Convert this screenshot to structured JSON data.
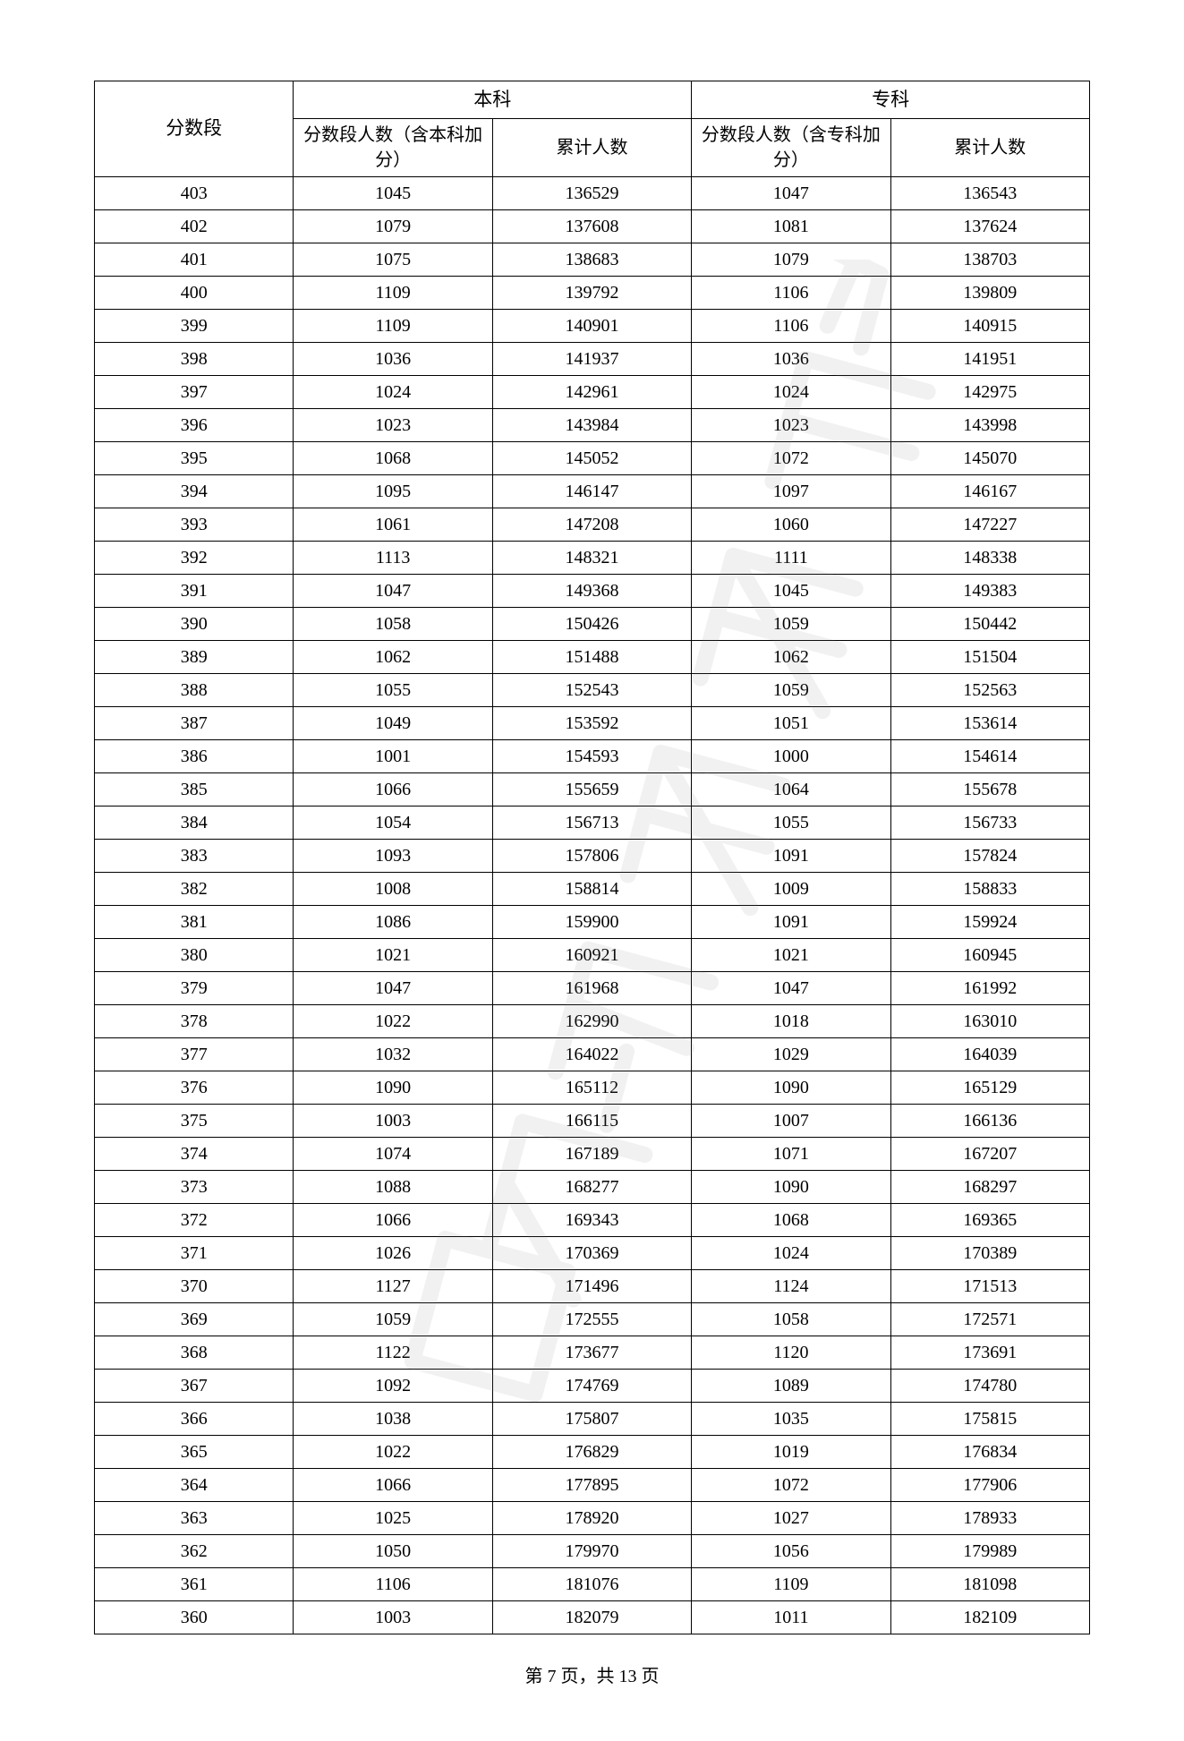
{
  "table": {
    "header": {
      "col1": "分数段",
      "group1": "本科",
      "group2": "专科",
      "sub1": "分数段人数（含本科加分）",
      "sub2": "累计人数",
      "sub3": "分数段人数（含专科加分）",
      "sub4": "累计人数"
    },
    "columns": [
      "score",
      "bk_count",
      "bk_cum",
      "zk_count",
      "zk_cum"
    ],
    "col_widths_pct": [
      20,
      20,
      20,
      20,
      20
    ],
    "border_color": "#000000",
    "font_size_header": 21,
    "font_size_body": 20,
    "text_color": "#000000",
    "rows": [
      [
        403,
        1045,
        136529,
        1047,
        136543
      ],
      [
        402,
        1079,
        137608,
        1081,
        137624
      ],
      [
        401,
        1075,
        138683,
        1079,
        138703
      ],
      [
        400,
        1109,
        139792,
        1106,
        139809
      ],
      [
        399,
        1109,
        140901,
        1106,
        140915
      ],
      [
        398,
        1036,
        141937,
        1036,
        141951
      ],
      [
        397,
        1024,
        142961,
        1024,
        142975
      ],
      [
        396,
        1023,
        143984,
        1023,
        143998
      ],
      [
        395,
        1068,
        145052,
        1072,
        145070
      ],
      [
        394,
        1095,
        146147,
        1097,
        146167
      ],
      [
        393,
        1061,
        147208,
        1060,
        147227
      ],
      [
        392,
        1113,
        148321,
        1111,
        148338
      ],
      [
        391,
        1047,
        149368,
        1045,
        149383
      ],
      [
        390,
        1058,
        150426,
        1059,
        150442
      ],
      [
        389,
        1062,
        151488,
        1062,
        151504
      ],
      [
        388,
        1055,
        152543,
        1059,
        152563
      ],
      [
        387,
        1049,
        153592,
        1051,
        153614
      ],
      [
        386,
        1001,
        154593,
        1000,
        154614
      ],
      [
        385,
        1066,
        155659,
        1064,
        155678
      ],
      [
        384,
        1054,
        156713,
        1055,
        156733
      ],
      [
        383,
        1093,
        157806,
        1091,
        157824
      ],
      [
        382,
        1008,
        158814,
        1009,
        158833
      ],
      [
        381,
        1086,
        159900,
        1091,
        159924
      ],
      [
        380,
        1021,
        160921,
        1021,
        160945
      ],
      [
        379,
        1047,
        161968,
        1047,
        161992
      ],
      [
        378,
        1022,
        162990,
        1018,
        163010
      ],
      [
        377,
        1032,
        164022,
        1029,
        164039
      ],
      [
        376,
        1090,
        165112,
        1090,
        165129
      ],
      [
        375,
        1003,
        166115,
        1007,
        166136
      ],
      [
        374,
        1074,
        167189,
        1071,
        167207
      ],
      [
        373,
        1088,
        168277,
        1090,
        168297
      ],
      [
        372,
        1066,
        169343,
        1068,
        169365
      ],
      [
        371,
        1026,
        170369,
        1024,
        170389
      ],
      [
        370,
        1127,
        171496,
        1124,
        171513
      ],
      [
        369,
        1059,
        172555,
        1058,
        172571
      ],
      [
        368,
        1122,
        173677,
        1120,
        173691
      ],
      [
        367,
        1092,
        174769,
        1089,
        174780
      ],
      [
        366,
        1038,
        175807,
        1035,
        175815
      ],
      [
        365,
        1022,
        176829,
        1019,
        176834
      ],
      [
        364,
        1066,
        177895,
        1072,
        177906
      ],
      [
        363,
        1025,
        178920,
        1027,
        178933
      ],
      [
        362,
        1050,
        179970,
        1056,
        179989
      ],
      [
        361,
        1106,
        181076,
        1109,
        181098
      ],
      [
        360,
        1003,
        182079,
        1011,
        182109
      ]
    ]
  },
  "footer": {
    "prefix": "第 ",
    "page": "7",
    "mid": " 页，共 ",
    "total": "13",
    "suffix": " 页"
  },
  "watermark": {
    "color": "#808080",
    "opacity": 0.12
  }
}
